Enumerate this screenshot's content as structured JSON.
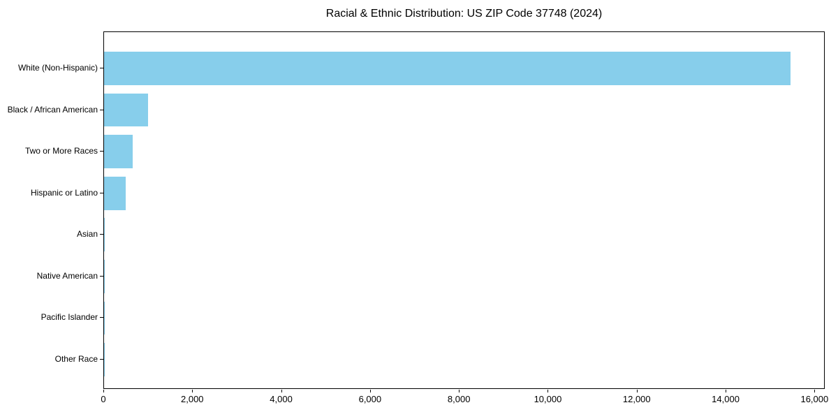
{
  "chart_data": {
    "type": "bar",
    "orientation": "horizontal",
    "title": "Racial & Ethnic Distribution: US ZIP Code 37748 (2024)",
    "categories": [
      "White (Non-Hispanic)",
      "Black / African American",
      "Two or More Races",
      "Hispanic or Latino",
      "Asian",
      "Native American",
      "Pacific Islander",
      "Other Race"
    ],
    "values": [
      15445,
      990,
      640,
      480,
      20,
      10,
      4,
      4
    ],
    "xlabel": "",
    "ylabel": "",
    "xlim": [
      0,
      16230
    ],
    "xticks": [
      0,
      2000,
      4000,
      6000,
      8000,
      10000,
      12000,
      14000,
      16000
    ],
    "xtick_labels": [
      "0",
      "2,000",
      "4,000",
      "6,000",
      "8,000",
      "10,000",
      "12,000",
      "14,000",
      "16,000"
    ],
    "bar_color": "#87CEEB",
    "grid": false,
    "legend": false
  }
}
